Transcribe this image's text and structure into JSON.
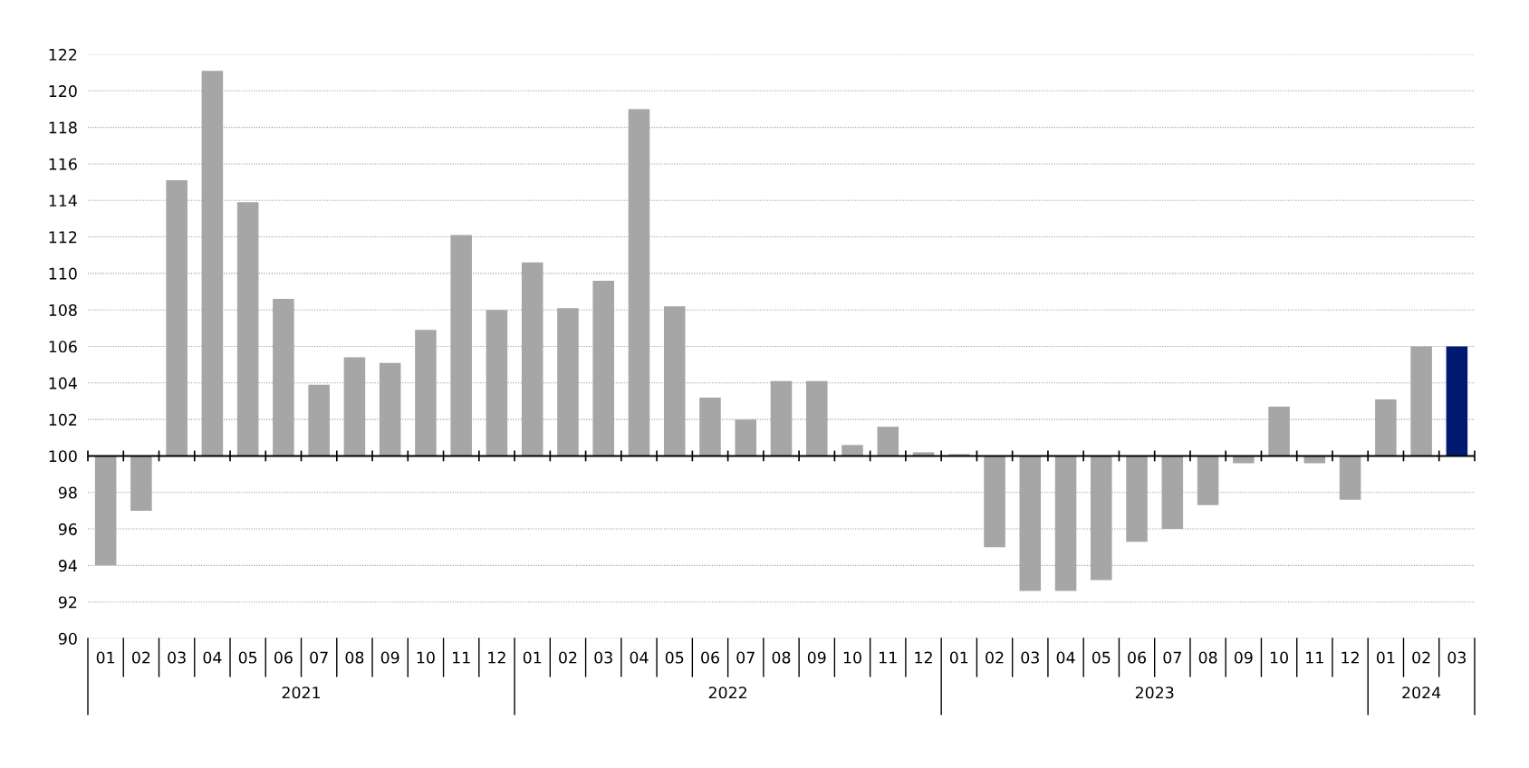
{
  "chart_data": {
    "type": "bar",
    "categories": [
      "01",
      "02",
      "03",
      "04",
      "05",
      "06",
      "07",
      "08",
      "09",
      "10",
      "11",
      "12",
      "01",
      "02",
      "03",
      "04",
      "05",
      "06",
      "07",
      "08",
      "09",
      "10",
      "11",
      "12",
      "01",
      "02",
      "03",
      "04",
      "05",
      "06",
      "07",
      "08",
      "09",
      "10",
      "11",
      "12",
      "01",
      "02",
      "03"
    ],
    "base": [
      100,
      100,
      100,
      100,
      100,
      100,
      100,
      100,
      100,
      100,
      100,
      100,
      100,
      100,
      100,
      100,
      100,
      100,
      100,
      100,
      100,
      100,
      100,
      100,
      100,
      100,
      100,
      100,
      100,
      100,
      100,
      100,
      100,
      100,
      100,
      100,
      100,
      100,
      100
    ],
    "values": [
      -6.0,
      -3.0,
      15.1,
      21.1,
      13.9,
      8.6,
      3.9,
      5.4,
      5.1,
      6.9,
      12.1,
      8.0,
      10.6,
      8.1,
      9.6,
      19.0,
      8.2,
      3.2,
      2.0,
      4.1,
      4.1,
      0.6,
      1.6,
      0.2,
      0.1,
      -5.0,
      -7.4,
      -7.4,
      -6.8,
      -4.7,
      -4.0,
      -2.7,
      -0.4,
      2.7,
      -0.4,
      -2.4,
      3.1,
      6.0,
      6.0
    ],
    "colors": [
      "#a6a6a6",
      "#a6a6a6",
      "#a6a6a6",
      "#a6a6a6",
      "#a6a6a6",
      "#a6a6a6",
      "#a6a6a6",
      "#a6a6a6",
      "#a6a6a6",
      "#a6a6a6",
      "#a6a6a6",
      "#a6a6a6",
      "#a6a6a6",
      "#a6a6a6",
      "#a6a6a6",
      "#a6a6a6",
      "#a6a6a6",
      "#a6a6a6",
      "#a6a6a6",
      "#a6a6a6",
      "#a6a6a6",
      "#a6a6a6",
      "#a6a6a6",
      "#a6a6a6",
      "#a6a6a6",
      "#a6a6a6",
      "#a6a6a6",
      "#a6a6a6",
      "#a6a6a6",
      "#a6a6a6",
      "#a6a6a6",
      "#a6a6a6",
      "#a6a6a6",
      "#a6a6a6",
      "#a6a6a6",
      "#a6a6a6",
      "#a6a6a6",
      "#a6a6a6",
      "#001a72"
    ],
    "annotations": [
      "2021",
      "2022",
      "2023",
      "2024"
    ],
    "ylim": [
      90,
      122
    ],
    "yticks": [
      90,
      92,
      94,
      96,
      98,
      100,
      102,
      104,
      106,
      108,
      110,
      112,
      114,
      116,
      118,
      120,
      122
    ],
    "ref_lines": [
      {
        "axis": "y",
        "value": 100,
        "color": "#000000"
      }
    ],
    "grid": "y"
  }
}
